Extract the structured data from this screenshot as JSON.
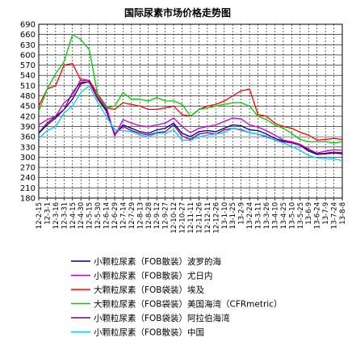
{
  "chart_data": {
    "type": "line",
    "title": "国际尿素市场价格走势图",
    "xlabel": "",
    "ylabel": "",
    "ylim": [
      180,
      690
    ],
    "yticks": [
      180,
      210,
      240,
      270,
      300,
      330,
      360,
      390,
      420,
      450,
      480,
      510,
      540,
      570,
      600,
      630,
      660,
      690
    ],
    "grid": true,
    "legend_position": "bottom",
    "x_tick_labels": [
      "12-2-15",
      "12-3-1",
      "12-3-16",
      "12-3-31",
      "12-4-15",
      "12-4-30",
      "12-5-15",
      "12-5-30",
      "12-6-14",
      "12-6-29",
      "12-7-14",
      "12-7-29",
      "12-8-13",
      "12-8-28",
      "12-9-12",
      "12-9-27",
      "12-10-12",
      "12-10-27",
      "12-11-11",
      "12-11-26",
      "12-12-11",
      "12-12-26",
      "13-1-10",
      "13-1-25",
      "13-2-9",
      "13-2-24",
      "13-3-11",
      "13-3-26",
      "13-4-10",
      "13-4-25",
      "13-5-10",
      "13-5-25",
      "13-6-9",
      "13-6-24",
      "13-7-9",
      "13-7-24",
      "13-8-8"
    ],
    "series": [
      {
        "name": "小颗粒尿素（FOB散装）波罗的海",
        "color": "#000080",
        "values": [
          370,
          395,
          415,
          440,
          470,
          515,
          522,
          475,
          440,
          365,
          395,
          385,
          375,
          370,
          380,
          385,
          400,
          370,
          360,
          375,
          378,
          375,
          385,
          395,
          392,
          380,
          378,
          368,
          355,
          348,
          343,
          335,
          318,
          308,
          310,
          312,
          310
        ]
      },
      {
        "name": "小颗粒尿素（FOB散装）尤日内",
        "color": "#cc00cc",
        "values": [
          395,
          410,
          420,
          460,
          480,
          530,
          525,
          485,
          450,
          362,
          410,
          400,
          392,
          390,
          395,
          400,
          415,
          390,
          372,
          385,
          390,
          395,
          405,
          415,
          412,
          395,
          388,
          378,
          365,
          350,
          345,
          338,
          324,
          312,
          318,
          322,
          320
        ]
      },
      {
        "name": "大颗粒尿素（FOB袋装）埃及",
        "color": "#ff0000",
        "values": [
          450,
          500,
          510,
          570,
          575,
          525,
          525,
          475,
          445,
          440,
          460,
          455,
          450,
          440,
          440,
          445,
          450,
          425,
          420,
          440,
          450,
          455,
          465,
          480,
          495,
          500,
          425,
          420,
          400,
          390,
          385,
          373,
          365,
          350,
          352,
          355,
          352
        ]
      },
      {
        "name": "大颗粒尿素（FOB袋装）美国海湾（CFRmetric）",
        "color": "#00cc00",
        "values": [
          435,
          500,
          545,
          580,
          660,
          645,
          615,
          480,
          445,
          450,
          490,
          470,
          470,
          465,
          475,
          465,
          465,
          455,
          420,
          440,
          445,
          450,
          455,
          460,
          460,
          450,
          420,
          410,
          395,
          385,
          370,
          352,
          345,
          345,
          345,
          342,
          345
        ]
      },
      {
        "name": "小颗粒尿素（FOB袋装）阿拉伯海湾",
        "color": "#800080",
        "values": [
          372,
          400,
          420,
          440,
          490,
          520,
          520,
          470,
          435,
          368,
          390,
          378,
          370,
          365,
          372,
          375,
          395,
          362,
          352,
          368,
          372,
          368,
          380,
          385,
          380,
          372,
          368,
          360,
          350,
          345,
          342,
          335,
          322,
          310,
          312,
          315,
          313
        ]
      },
      {
        "name": "小颗粒尿素（FOB散装）中国",
        "color": "#00ccff",
        "values": [
          355,
          378,
          390,
          430,
          450,
          490,
          510,
          460,
          420,
          380,
          378,
          375,
          365,
          360,
          370,
          370,
          380,
          350,
          350,
          360,
          365,
          368,
          372,
          385,
          382,
          372,
          368,
          362,
          350,
          342,
          332,
          320,
          305,
          298,
          296,
          295,
          290
        ]
      }
    ]
  }
}
